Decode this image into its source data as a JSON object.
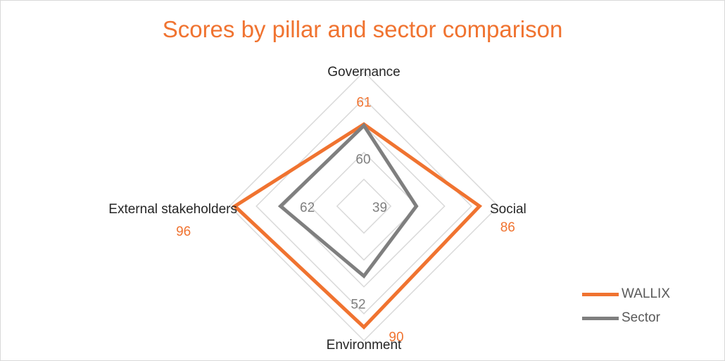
{
  "chart_data": {
    "type": "radar",
    "title": "Scores by pillar and sector comparison",
    "categories": [
      "Governance",
      "Social",
      "Environment",
      "External stakeholders"
    ],
    "series": [
      {
        "name": "WALLIX",
        "values": [
          61,
          86,
          90,
          96
        ],
        "color": "#f07330"
      },
      {
        "name": "Sector",
        "values": [
          60,
          39,
          52,
          62
        ],
        "color": "#7f7f7f"
      }
    ],
    "rlim": [
      0,
      100
    ],
    "grid": true,
    "legend": "bottom-right"
  }
}
